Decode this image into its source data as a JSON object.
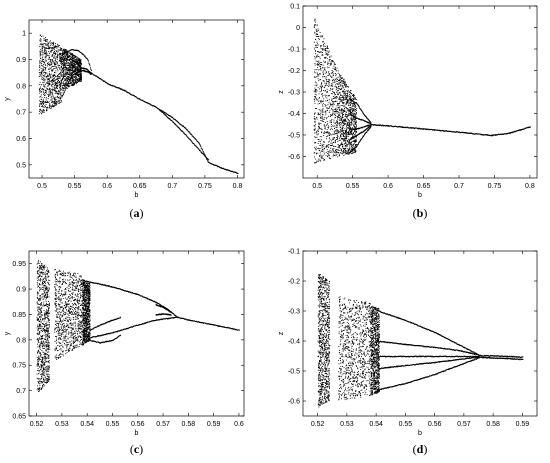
{
  "chart_data": [
    {
      "type": "scatter",
      "panel": "a",
      "caption_prefix": "(",
      "caption_letter": "a",
      "caption_suffix": ")",
      "xlabel": "b",
      "ylabel": "y",
      "xlim": [
        0.48,
        0.81
      ],
      "ylim": [
        0.45,
        1.05
      ],
      "xticks": [
        "0.5",
        "0.55",
        "0.6",
        "0.65",
        "0.7",
        "0.75",
        "0.8"
      ],
      "xtick_values": [
        0.5,
        0.55,
        0.6,
        0.65,
        0.7,
        0.75,
        0.8
      ],
      "yticks": [
        "0.5",
        "0.6",
        "0.7",
        "0.8",
        "0.9",
        "1"
      ],
      "ytick_values": [
        0.5,
        0.6,
        0.7,
        0.8,
        0.9,
        1.0
      ],
      "bands": [
        {
          "x": [
            0.495,
            0.53
          ],
          "lo": [
            0.69,
            0.74
          ],
          "hi": [
            1.0,
            0.95
          ]
        },
        {
          "x": [
            0.53,
            0.56
          ],
          "lo": [
            0.78,
            0.82
          ],
          "hi": [
            0.95,
            0.9
          ]
        }
      ],
      "branches": [
        {
          "x": [
            0.53,
            0.545,
            0.555,
            0.563,
            0.57,
            0.575
          ],
          "y": [
            0.92,
            0.94,
            0.935,
            0.92,
            0.9,
            0.86
          ]
        },
        {
          "x": [
            0.53,
            0.545,
            0.555,
            0.563,
            0.57,
            0.575
          ],
          "y": [
            0.76,
            0.84,
            0.855,
            0.86,
            0.855,
            0.845
          ]
        },
        {
          "x": [
            0.545,
            0.552,
            0.56,
            0.568,
            0.575
          ],
          "y": [
            0.9,
            0.89,
            0.87,
            0.865,
            0.85
          ]
        },
        {
          "x": [
            0.545,
            0.552,
            0.56,
            0.568,
            0.575
          ],
          "y": [
            0.88,
            0.865,
            0.86,
            0.855,
            0.85
          ]
        },
        {
          "x": [
            0.575,
            0.6,
            0.625,
            0.65,
            0.675,
            0.7,
            0.72,
            0.74,
            0.755,
            0.78,
            0.8
          ],
          "y": [
            0.85,
            0.81,
            0.785,
            0.75,
            0.72,
            0.68,
            0.64,
            0.585,
            0.51,
            0.485,
            0.47
          ]
        },
        {
          "x": [
            0.68,
            0.7,
            0.72,
            0.74,
            0.755
          ],
          "y": [
            0.71,
            0.665,
            0.615,
            0.56,
            0.52
          ]
        }
      ]
    },
    {
      "type": "scatter",
      "panel": "b",
      "caption_prefix": "(",
      "caption_letter": "b",
      "caption_suffix": ")",
      "xlabel": "b",
      "ylabel": "z",
      "xlim": [
        0.48,
        0.81
      ],
      "ylim": [
        -0.7,
        0.1
      ],
      "xticks": [
        "0.5",
        "0.55",
        "0.6",
        "0.65",
        "0.7",
        "0.75",
        "0.8"
      ],
      "xtick_values": [
        0.5,
        0.55,
        0.6,
        0.65,
        0.7,
        0.75,
        0.8
      ],
      "yticks": [
        "-0.6",
        "-0.5",
        "-0.4",
        "-0.3",
        "-0.2",
        "-0.1",
        "0",
        "0.1"
      ],
      "ytick_values": [
        -0.6,
        -0.5,
        -0.4,
        -0.3,
        -0.2,
        -0.1,
        0.0,
        0.1
      ],
      "bands": [
        {
          "x": [
            0.495,
            0.53
          ],
          "lo": [
            -0.63,
            -0.6
          ],
          "hi": [
            0.05,
            -0.2
          ]
        },
        {
          "x": [
            0.53,
            0.555
          ],
          "lo": [
            -0.6,
            -0.58
          ],
          "hi": [
            -0.2,
            -0.33
          ]
        }
      ],
      "branches": [
        {
          "x": [
            0.545,
            0.555,
            0.565,
            0.575
          ],
          "y": [
            -0.33,
            -0.35,
            -0.4,
            -0.44
          ]
        },
        {
          "x": [
            0.545,
            0.555,
            0.565,
            0.575
          ],
          "y": [
            -0.4,
            -0.42,
            -0.43,
            -0.445
          ]
        },
        {
          "x": [
            0.545,
            0.555,
            0.565,
            0.575
          ],
          "y": [
            -0.47,
            -0.47,
            -0.46,
            -0.45
          ]
        },
        {
          "x": [
            0.545,
            0.555,
            0.565,
            0.575
          ],
          "y": [
            -0.52,
            -0.5,
            -0.48,
            -0.455
          ]
        },
        {
          "x": [
            0.545,
            0.555,
            0.565,
            0.575
          ],
          "y": [
            -0.58,
            -0.55,
            -0.5,
            -0.46
          ]
        },
        {
          "x": [
            0.575,
            0.6,
            0.65,
            0.7,
            0.745,
            0.77,
            0.8
          ],
          "y": [
            -0.45,
            -0.455,
            -0.47,
            -0.485,
            -0.5,
            -0.49,
            -0.46
          ]
        }
      ]
    },
    {
      "type": "scatter",
      "panel": "c",
      "caption_prefix": "(",
      "caption_letter": "c",
      "caption_suffix": ")",
      "xlabel": "b",
      "ylabel": "y",
      "xlim": [
        0.517,
        0.602
      ],
      "ylim": [
        0.65,
        0.975
      ],
      "xticks": [
        "0.52",
        "0.53",
        "0.54",
        "0.55",
        "0.56",
        "0.57",
        "0.58",
        "0.59",
        "0.6"
      ],
      "xtick_values": [
        0.52,
        0.53,
        0.54,
        0.55,
        0.56,
        0.57,
        0.58,
        0.59,
        0.6
      ],
      "yticks": [
        "0.65",
        "0.7",
        "0.75",
        "0.8",
        "0.85",
        "0.9",
        "0.95"
      ],
      "ytick_values": [
        0.65,
        0.7,
        0.75,
        0.8,
        0.85,
        0.9,
        0.95
      ],
      "bands": [
        {
          "x": [
            0.52,
            0.525
          ],
          "lo": [
            0.695,
            0.72
          ],
          "hi": [
            0.96,
            0.94
          ]
        },
        {
          "x": [
            0.527,
            0.538
          ],
          "lo": [
            0.76,
            0.79
          ],
          "hi": [
            0.94,
            0.93
          ]
        },
        {
          "x": [
            0.538,
            0.541
          ],
          "lo": [
            0.79,
            0.8
          ],
          "hi": [
            0.92,
            0.915
          ]
        }
      ],
      "branches": [
        {
          "x": [
            0.541,
            0.55,
            0.56,
            0.567,
            0.572,
            0.575
          ],
          "y": [
            0.915,
            0.905,
            0.89,
            0.875,
            0.86,
            0.847
          ]
        },
        {
          "x": [
            0.541,
            0.55,
            0.56,
            0.567,
            0.572,
            0.575
          ],
          "y": [
            0.805,
            0.815,
            0.83,
            0.84,
            0.843,
            0.845
          ]
        },
        {
          "x": [
            0.541,
            0.545,
            0.55,
            0.553
          ],
          "y": [
            0.82,
            0.83,
            0.84,
            0.845
          ]
        },
        {
          "x": [
            0.541,
            0.545,
            0.55,
            0.553
          ],
          "y": [
            0.8,
            0.795,
            0.8,
            0.81
          ]
        },
        {
          "x": [
            0.567,
            0.57,
            0.573
          ],
          "y": [
            0.87,
            0.865,
            0.855
          ]
        },
        {
          "x": [
            0.567,
            0.57,
            0.573
          ],
          "y": [
            0.85,
            0.852,
            0.85
          ]
        },
        {
          "x": [
            0.575,
            0.58,
            0.59,
            0.6
          ],
          "y": [
            0.846,
            0.84,
            0.83,
            0.82
          ]
        }
      ]
    },
    {
      "type": "scatter",
      "panel": "d",
      "caption_prefix": "(",
      "caption_letter": "d",
      "caption_suffix": ")",
      "xlabel": "b",
      "ylabel": "z",
      "xlim": [
        0.515,
        0.595
      ],
      "ylim": [
        -0.65,
        -0.1
      ],
      "xticks": [
        "0.52",
        "0.53",
        "0.54",
        "0.55",
        "0.56",
        "0.57",
        "0.58",
        "0.59"
      ],
      "xtick_values": [
        0.52,
        0.53,
        0.54,
        0.55,
        0.56,
        0.57,
        0.58,
        0.59
      ],
      "yticks": [
        "-0.6",
        "-0.5",
        "-0.4",
        "-0.3",
        "-0.2",
        "-0.1"
      ],
      "ytick_values": [
        -0.6,
        -0.5,
        -0.4,
        -0.3,
        -0.2,
        -0.1
      ],
      "bands": [
        {
          "x": [
            0.52,
            0.524
          ],
          "lo": [
            -0.62,
            -0.6
          ],
          "hi": [
            -0.17,
            -0.2
          ]
        },
        {
          "x": [
            0.527,
            0.538
          ],
          "lo": [
            -0.6,
            -0.58
          ],
          "hi": [
            -0.25,
            -0.27
          ]
        },
        {
          "x": [
            0.538,
            0.541
          ],
          "lo": [
            -0.58,
            -0.57
          ],
          "hi": [
            -0.28,
            -0.29
          ]
        }
      ],
      "branches": [
        {
          "x": [
            0.541,
            0.55,
            0.56,
            0.568,
            0.575
          ],
          "y": [
            -0.3,
            -0.33,
            -0.37,
            -0.41,
            -0.445
          ]
        },
        {
          "x": [
            0.541,
            0.55,
            0.56,
            0.568,
            0.575
          ],
          "y": [
            -0.4,
            -0.41,
            -0.42,
            -0.43,
            -0.445
          ]
        },
        {
          "x": [
            0.541,
            0.55,
            0.56,
            0.568,
            0.575
          ],
          "y": [
            -0.45,
            -0.45,
            -0.45,
            -0.45,
            -0.45
          ]
        },
        {
          "x": [
            0.541,
            0.55,
            0.56,
            0.568,
            0.575
          ],
          "y": [
            -0.49,
            -0.48,
            -0.47,
            -0.46,
            -0.452
          ]
        },
        {
          "x": [
            0.541,
            0.55,
            0.56,
            0.568,
            0.575
          ],
          "y": [
            -0.56,
            -0.54,
            -0.51,
            -0.48,
            -0.455
          ]
        },
        {
          "x": [
            0.575,
            0.58,
            0.585,
            0.59
          ],
          "y": [
            -0.447,
            -0.448,
            -0.45,
            -0.452
          ]
        },
        {
          "x": [
            0.575,
            0.58,
            0.585,
            0.59
          ],
          "y": [
            -0.453,
            -0.455,
            -0.457,
            -0.46
          ]
        }
      ]
    }
  ]
}
